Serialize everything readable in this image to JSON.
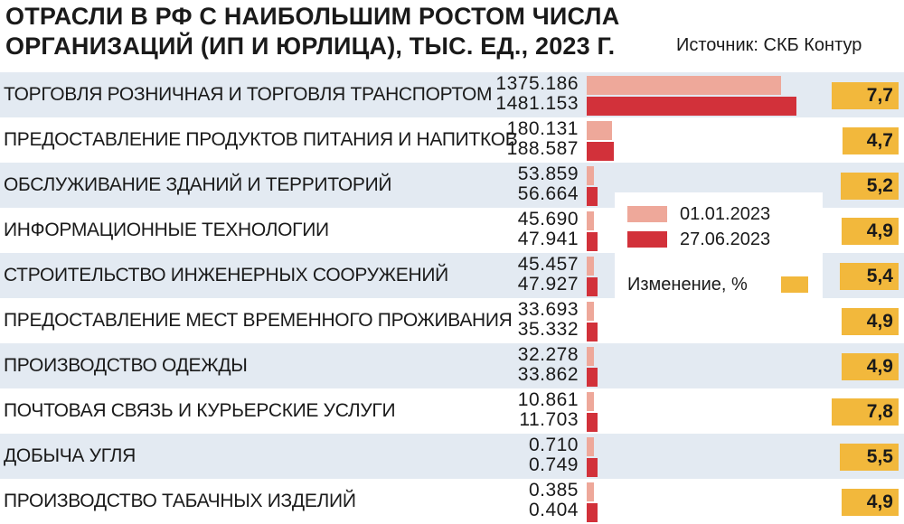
{
  "title": "ОТРАСЛИ В РФ С НАИБОЛЬШИМ РОСТОМ ЧИСЛА ОРГАНИЗАЦИЙ (ИП И ЮРЛИЦА), ТЫС. ЕД., 2023 Г.",
  "source": "Источник: СКБ Контур",
  "legend": {
    "series1": "01.01.2023",
    "series2": "27.06.2023",
    "change": "Изменение, %"
  },
  "colors": {
    "series1": "#eea89a",
    "series2": "#d2313a",
    "change": "#f2b83c",
    "row_shade": "#e3eaf2"
  },
  "chart_data": {
    "type": "bar",
    "orientation": "horizontal",
    "title": "ОТРАСЛИ В РФ С НАИБОЛЬШИМ РОСТОМ ЧИСЛА ОРГАНИЗАЦИЙ (ИП И ЮРЛИЦА), ТЫС. ЕД., 2023 Г.",
    "categories": [
      "ТОРГОВЛЯ РОЗНИЧНАЯ И ТОРГОВЛЯ ТРАНСПОРТОМ",
      "ПРЕДОСТАВЛЕНИЕ ПРОДУКТОВ ПИТАНИЯ И НАПИТКОВ",
      "ОБСЛУЖИВАНИЕ ЗДАНИЙ И ТЕРРИТОРИЙ",
      "ИНФОРМАЦИОННЫЕ ТЕХНОЛОГИИ",
      "СТРОИТЕЛЬСТВО ИНЖЕНЕРНЫХ СООРУЖЕНИЙ",
      "ПРЕДОСТАВЛЕНИЕ МЕСТ ВРЕМЕННОГО ПРОЖИВАНИЯ",
      "ПРОИЗВОДСТВО ОДЕЖДЫ",
      "ПОЧТОВАЯ СВЯЗЬ И КУРЬЕРСКИЕ УСЛУГИ",
      "ДОБЫЧА УГЛЯ",
      "ПРОИЗВОДСТВО ТАБАЧНЫХ ИЗДЕЛИЙ"
    ],
    "series": [
      {
        "name": "01.01.2023",
        "labels": [
          "1375.186",
          "180.131",
          "53.859",
          "45.690",
          "45.457",
          "33.693",
          "32.278",
          "10.861",
          "0.710",
          "0.385"
        ],
        "values": [
          1375.186,
          180.131,
          53.859,
          45.69,
          45.457,
          33.693,
          32.278,
          10.861,
          0.71,
          0.385
        ]
      },
      {
        "name": "27.06.2023",
        "labels": [
          "1481.153",
          "188.587",
          "56.664",
          "47.941",
          "47.927",
          "35.332",
          "33.862",
          "11.703",
          "0.749",
          "0.404"
        ],
        "values": [
          1481.153,
          188.587,
          56.664,
          47.941,
          47.927,
          35.332,
          33.862,
          11.703,
          0.749,
          0.404
        ]
      }
    ],
    "change_percent": {
      "name": "Изменение, %",
      "labels": [
        "7,7",
        "4,7",
        "5,2",
        "4,9",
        "5,4",
        "4,9",
        "4,9",
        "7,8",
        "5,5",
        "4,9"
      ],
      "values": [
        7.7,
        4.7,
        5.2,
        4.9,
        5.4,
        4.9,
        4.9,
        7.8,
        5.5,
        4.9
      ]
    },
    "xlim": [
      0,
      1481.153
    ],
    "legend_position": "right-center",
    "grid": false
  }
}
